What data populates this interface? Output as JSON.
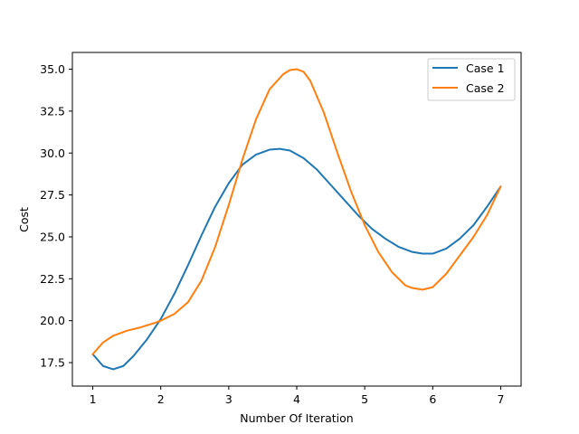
{
  "chart_data": {
    "type": "line",
    "title": "",
    "xlabel": "Number Of Iteration",
    "ylabel": "Cost",
    "xlim": [
      0.7,
      7.3
    ],
    "ylim": [
      16.1,
      36.0
    ],
    "xticks": [
      1,
      2,
      3,
      4,
      5,
      6,
      7
    ],
    "xtick_labels": [
      "1",
      "2",
      "3",
      "4",
      "5",
      "6",
      "7"
    ],
    "yticks": [
      17.5,
      20.0,
      22.5,
      25.0,
      27.5,
      30.0,
      32.5,
      35.0
    ],
    "ytick_labels": [
      "17.5",
      "20.0",
      "22.5",
      "25.0",
      "27.5",
      "30.0",
      "32.5",
      "35.0"
    ],
    "grid": false,
    "legend_position": "top-right",
    "series": [
      {
        "name": "Case 1",
        "color": "#1f77b4",
        "x": [
          1.0,
          1.15,
          1.3,
          1.45,
          1.6,
          1.8,
          2.0,
          2.2,
          2.4,
          2.6,
          2.8,
          3.0,
          3.2,
          3.4,
          3.6,
          3.75,
          3.9,
          4.1,
          4.3,
          4.5,
          4.7,
          4.9,
          5.1,
          5.3,
          5.5,
          5.7,
          5.85,
          6.0,
          6.2,
          6.4,
          6.6,
          6.8,
          7.0
        ],
        "y": [
          18.0,
          17.3,
          17.1,
          17.3,
          17.9,
          18.9,
          20.1,
          21.6,
          23.3,
          25.1,
          26.8,
          28.2,
          29.3,
          29.9,
          30.2,
          30.25,
          30.15,
          29.7,
          29.0,
          28.1,
          27.2,
          26.3,
          25.5,
          24.9,
          24.4,
          24.1,
          24.0,
          24.0,
          24.3,
          24.9,
          25.7,
          26.8,
          28.0
        ]
      },
      {
        "name": "Case 2",
        "color": "#ff7f0e",
        "x": [
          1.0,
          1.15,
          1.3,
          1.5,
          1.7,
          1.9,
          2.0,
          2.2,
          2.4,
          2.6,
          2.8,
          3.0,
          3.2,
          3.4,
          3.6,
          3.8,
          3.9,
          4.0,
          4.1,
          4.2,
          4.4,
          4.6,
          4.8,
          5.0,
          5.2,
          5.4,
          5.6,
          5.7,
          5.85,
          6.0,
          6.2,
          6.4,
          6.6,
          6.8,
          7.0
        ],
        "y": [
          18.0,
          18.7,
          19.1,
          19.4,
          19.6,
          19.85,
          20.0,
          20.4,
          21.1,
          22.4,
          24.4,
          26.9,
          29.6,
          32.0,
          33.8,
          34.7,
          34.95,
          35.0,
          34.85,
          34.3,
          32.4,
          30.0,
          27.7,
          25.7,
          24.1,
          22.9,
          22.1,
          21.95,
          21.85,
          22.0,
          22.8,
          23.9,
          25.0,
          26.3,
          28.0
        ]
      }
    ]
  }
}
